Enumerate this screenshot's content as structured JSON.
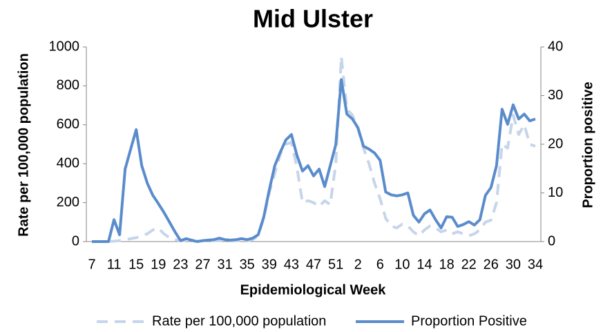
{
  "chart_data": {
    "type": "line",
    "title": "Mid Ulster",
    "x_label": "Epidemiological Week",
    "y_label": "Rate per 100,000 population",
    "y2_label": "Proportion positive",
    "categories": [
      "7",
      null,
      null,
      null,
      "11",
      null,
      null,
      null,
      "15",
      null,
      null,
      null,
      "19",
      null,
      null,
      null,
      "23",
      null,
      null,
      null,
      "27",
      null,
      null,
      null,
      "31",
      null,
      null,
      null,
      "35",
      null,
      null,
      null,
      "39",
      null,
      null,
      null,
      "43",
      null,
      null,
      null,
      "47",
      null,
      null,
      null,
      "51",
      null,
      null,
      null,
      "2",
      null,
      null,
      null,
      "6",
      null,
      null,
      null,
      "10",
      null,
      null,
      null,
      "14",
      null,
      null,
      null,
      "18",
      null,
      null,
      null,
      "22",
      null,
      null,
      null,
      "26",
      null,
      null,
      null,
      "30",
      null,
      null,
      null,
      "34"
    ],
    "series": [
      {
        "name": "Rate per 100,000 population",
        "color": "#c6d5ea",
        "dashed": true,
        "values": [
          0,
          0,
          0,
          0,
          2,
          5,
          10,
          15,
          20,
          30,
          40,
          60,
          70,
          40,
          20,
          10,
          5,
          3,
          2,
          2,
          3,
          3,
          4,
          4,
          3,
          3,
          4,
          4,
          3,
          10,
          30,
          120,
          250,
          350,
          450,
          500,
          510,
          380,
          200,
          210,
          200,
          180,
          210,
          190,
          400,
          950,
          680,
          650,
          580,
          480,
          400,
          300,
          220,
          120,
          80,
          70,
          90,
          80,
          50,
          30,
          60,
          80,
          70,
          50,
          60,
          40,
          50,
          40,
          30,
          40,
          60,
          100,
          110,
          200,
          500,
          480,
          650,
          550,
          600,
          500,
          490
        ]
      },
      {
        "name": "Proportion Positive",
        "color": "#5a8ccc",
        "axis": "y2",
        "values": [
          0,
          0,
          0,
          0,
          4.5,
          1.4,
          14.9,
          19,
          23,
          15.6,
          12,
          9.5,
          7.8,
          6,
          4,
          2,
          0.2,
          0.6,
          0.3,
          0,
          0.2,
          0.3,
          0.4,
          0.7,
          0.4,
          0.3,
          0.4,
          0.6,
          0.4,
          0.7,
          1.4,
          5,
          10.6,
          15.6,
          18.4,
          20.9,
          22,
          17.7,
          14.5,
          15.6,
          13.5,
          14.9,
          11.3,
          15.6,
          19.9,
          33.3,
          26.2,
          25.2,
          23.4,
          19.6,
          19,
          18.2,
          16.7,
          10.2,
          9.6,
          9.4,
          9.6,
          10,
          5.4,
          4,
          5.7,
          6.5,
          4.5,
          2.8,
          5.1,
          5,
          3.1,
          3.5,
          4.1,
          3.4,
          4.5,
          9.5,
          11.1,
          15.6,
          27.2,
          24.1,
          28.1,
          25.2,
          26.2,
          24.8,
          25.2
        ]
      }
    ],
    "ylim": [
      0,
      1000
    ],
    "yticks": [
      0,
      200,
      400,
      600,
      800,
      1000
    ],
    "y2lim": [
      0,
      40
    ],
    "y2ticks": [
      0,
      10,
      20,
      30,
      40
    ],
    "grid": false,
    "legend": "bottom"
  }
}
